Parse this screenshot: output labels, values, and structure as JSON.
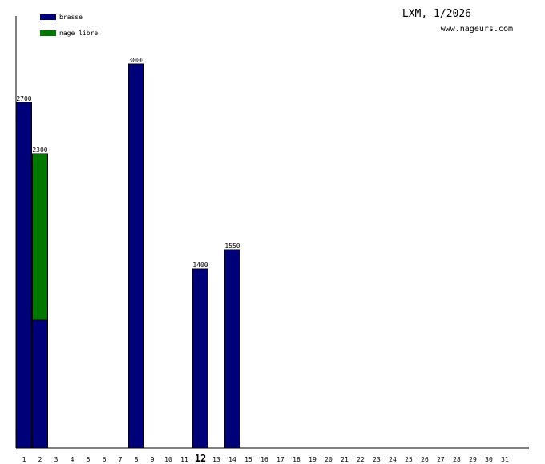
{
  "header": {
    "title": "LXM, 1/2026",
    "site": "www.nageurs.com"
  },
  "colors": {
    "brasse": "#000078",
    "nage_libre": "#007800",
    "axis": "#000000"
  },
  "chart_data": {
    "type": "bar",
    "stacked": true,
    "title": "LXM, 1/2026",
    "categories": [
      "1",
      "2",
      "3",
      "4",
      "5",
      "6",
      "7",
      "8",
      "9",
      "10",
      "11",
      "12",
      "13",
      "14",
      "15",
      "16",
      "17",
      "18",
      "19",
      "20",
      "21",
      "22",
      "23",
      "24",
      "25",
      "26",
      "27",
      "28",
      "29",
      "30",
      "31"
    ],
    "highlight_category": "12",
    "series": [
      {
        "name": "brasse",
        "color": "#000078",
        "values": [
          2700,
          1000,
          0,
          0,
          0,
          0,
          0,
          3000,
          0,
          0,
          0,
          1400,
          0,
          1550,
          0,
          0,
          0,
          0,
          0,
          0,
          0,
          0,
          0,
          0,
          0,
          0,
          0,
          0,
          0,
          0,
          0
        ]
      },
      {
        "name": "nage libre",
        "color": "#007800",
        "values": [
          0,
          1300,
          0,
          0,
          0,
          0,
          0,
          0,
          0,
          0,
          0,
          0,
          0,
          0,
          0,
          0,
          0,
          0,
          0,
          0,
          0,
          0,
          0,
          0,
          0,
          0,
          0,
          0,
          0,
          0,
          0
        ]
      }
    ],
    "totals": [
      2700,
      2300,
      0,
      0,
      0,
      0,
      0,
      3000,
      0,
      0,
      0,
      1400,
      0,
      1550,
      0,
      0,
      0,
      0,
      0,
      0,
      0,
      0,
      0,
      0,
      0,
      0,
      0,
      0,
      0,
      0,
      0
    ],
    "ylim": [
      0,
      3375
    ],
    "legend_position": "top-left",
    "grid": false
  }
}
